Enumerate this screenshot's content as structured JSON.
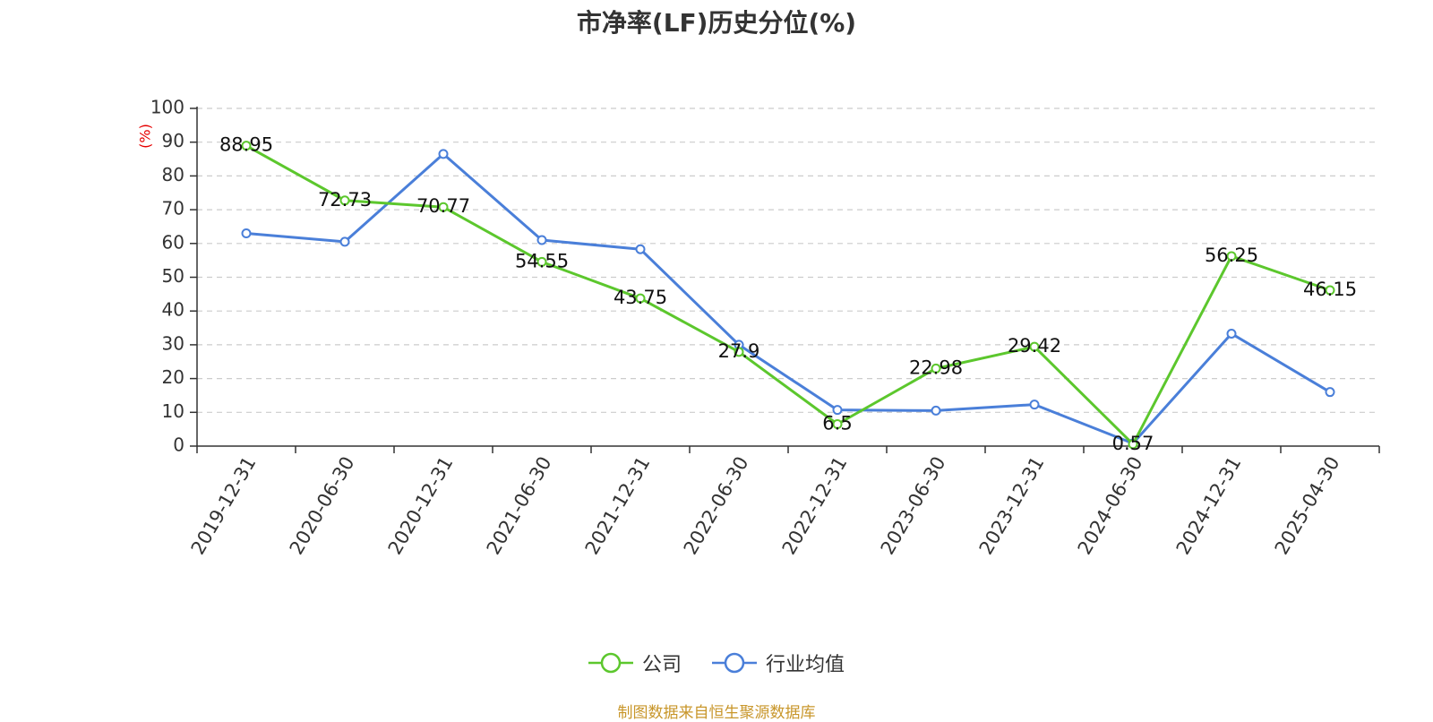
{
  "chart_data": {
    "type": "line",
    "title": "市净率(LF)历史分位(%)",
    "ylabel": "(%)",
    "xlabel": "",
    "ylim": [
      0,
      100
    ],
    "yticks": [
      0,
      10,
      20,
      30,
      40,
      50,
      60,
      70,
      80,
      90,
      100
    ],
    "grid": true,
    "legend_position": "bottom",
    "categories": [
      "2019-12-31",
      "2020-06-30",
      "2020-12-31",
      "2021-06-30",
      "2021-12-31",
      "2022-06-30",
      "2022-12-31",
      "2023-06-30",
      "2023-12-31",
      "2024-06-30",
      "2024-12-31",
      "2025-04-30"
    ],
    "series": [
      {
        "name": "公司",
        "color": "#5cc72d",
        "values": [
          88.95,
          72.73,
          70.77,
          54.55,
          43.75,
          27.9,
          6.5,
          22.98,
          29.42,
          0.57,
          56.25,
          46.15
        ],
        "labels": [
          "88.95",
          "72.73",
          "70.77",
          "54.55",
          "43.75",
          "27.9",
          "6.5",
          "22.98",
          "29.42",
          "0.57",
          "56.25",
          "46.15"
        ]
      },
      {
        "name": "行业均值",
        "color": "#4a7fd9",
        "values": [
          63,
          60.5,
          86.5,
          61,
          58.3,
          30,
          10.7,
          10.5,
          12.3,
          0.8,
          33.3,
          16
        ]
      }
    ]
  },
  "source_note": "制图数据来自恒生聚源数据库"
}
